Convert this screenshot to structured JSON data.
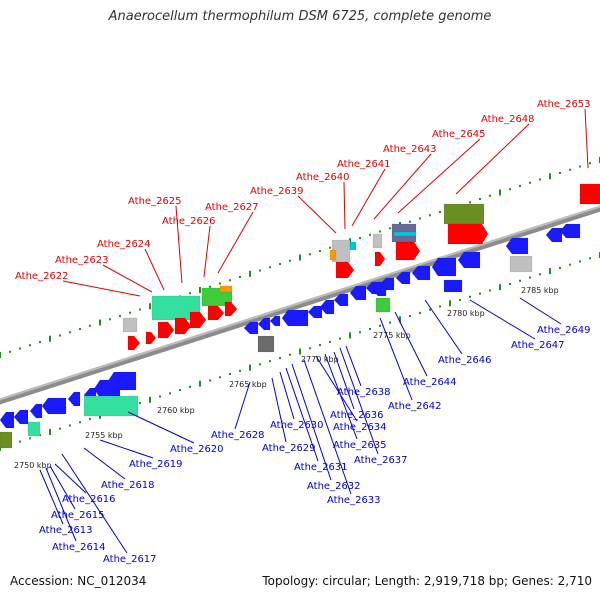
{
  "title": "Anaerocellum thermophilum DSM 6725, complete genome",
  "footer": {
    "accession": "Accession: NC_012034",
    "summary": "Topology: circular; Length: 2,919,718 bp; Genes: 2,710"
  },
  "colors": {
    "top_label": "#e00000",
    "bottom_label": "#0000cc",
    "red": "#ff0000",
    "blue": "#1a1aff",
    "grey": "#c0c0c0",
    "dark_grey": "#6b6b6b",
    "aquamarine": "#33e0a0",
    "green": "#3ccc3c",
    "olive": "#6b8e23",
    "orange": "#ff9900",
    "cyan": "#00c8dc",
    "slate": "#6a6a9a",
    "tick": "#228B22"
  },
  "kbp_ticks": [
    {
      "label": "2750 kbp"
    },
    {
      "label": "2755 kbp"
    },
    {
      "label": "2760 kbp"
    },
    {
      "label": "2765 kbp"
    },
    {
      "label": "2770 kbp"
    },
    {
      "label": "2775 kbp"
    },
    {
      "label": "2780 kbp"
    },
    {
      "label": "2785 kbp"
    }
  ],
  "top_labels": [
    "Athe_2622",
    "Athe_2623",
    "Athe_2624",
    "Athe_2625",
    "Athe_2626",
    "Athe_2627",
    "Athe_2639",
    "Athe_2640",
    "Athe_2641",
    "Athe_2643",
    "Athe_2645",
    "Athe_2648",
    "Athe_2653"
  ],
  "bottom_labels": [
    "Athe_2613",
    "Athe_2614",
    "Athe_2615",
    "Athe_2616",
    "Athe_2617",
    "Athe_2618",
    "Athe_2619",
    "Athe_2620",
    "Athe_2628",
    "Athe_2629",
    "Athe_2630",
    "Athe_2631",
    "Athe_2632",
    "Athe_2633",
    "Athe_2634",
    "Athe_2635",
    "Athe_2636",
    "Athe_2637",
    "Athe_2638",
    "Athe_2642",
    "Athe_2644",
    "Athe_2646",
    "Athe_2647",
    "Athe_2649"
  ]
}
